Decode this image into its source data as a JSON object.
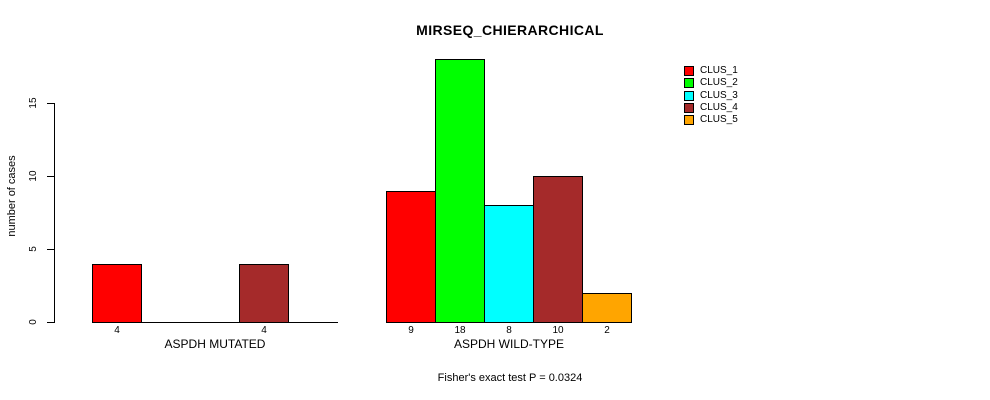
{
  "chart_data": {
    "type": "bar",
    "title": "MIRSEQ_CHIERARCHICAL",
    "xlabel": "",
    "ylabel": "number of cases",
    "ylim": [
      0,
      18
    ],
    "yticks": [
      0,
      5,
      10,
      15
    ],
    "grid": false,
    "legend_position": "top-right-outside",
    "categories": [
      "ASPDH MUTATED",
      "ASPDH WILD-TYPE"
    ],
    "series": [
      {
        "name": "CLUS_1",
        "color": "#ff0000",
        "values": [
          4,
          9
        ]
      },
      {
        "name": "CLUS_2",
        "color": "#00ff00",
        "values": [
          0,
          18
        ]
      },
      {
        "name": "CLUS_3",
        "color": "#00ffff",
        "values": [
          0,
          8
        ]
      },
      {
        "name": "CLUS_4",
        "color": "#a52a2a",
        "values": [
          4,
          10
        ]
      },
      {
        "name": "CLUS_5",
        "color": "#ffa500",
        "values": [
          0,
          2
        ]
      }
    ],
    "bar_labels": [
      [
        "4",
        "",
        "",
        "4",
        ""
      ],
      [
        "9",
        "18",
        "8",
        "10",
        "2"
      ]
    ],
    "annotation": "Fisher's exact test P = 0.0324"
  }
}
